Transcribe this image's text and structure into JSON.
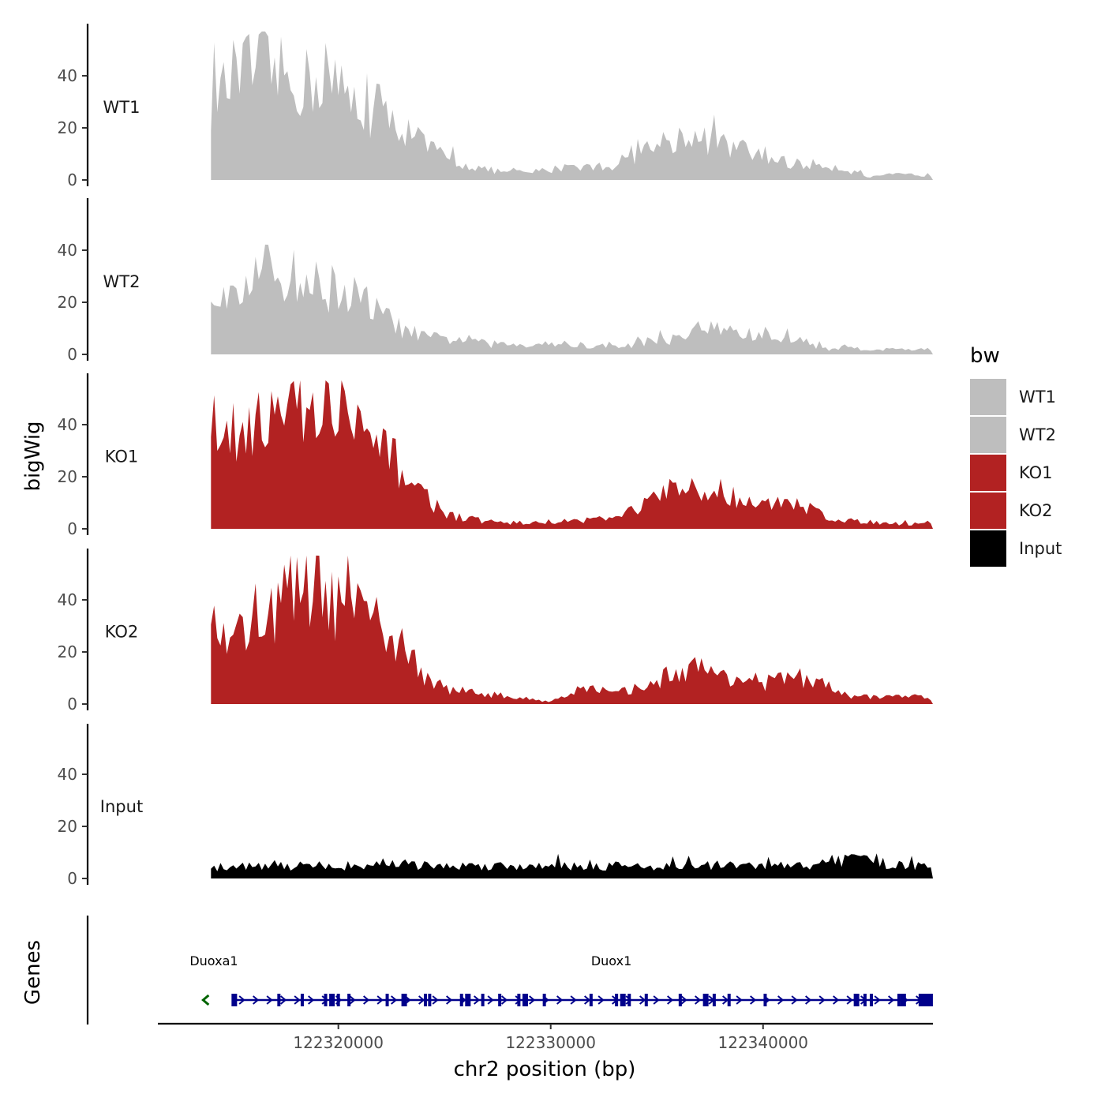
{
  "chart_data": {
    "type": "area",
    "ylabel": "bigWig",
    "xlabel": "chr2 position (bp)",
    "genes_label": "Genes",
    "xlim": [
      122311500,
      122348000
    ],
    "data_range": [
      122314000,
      122348000
    ],
    "ylim": [
      0,
      60
    ],
    "yticks": [
      0,
      20,
      40
    ],
    "xticks": [
      {
        "value": 122320000,
        "label": "122320000"
      },
      {
        "value": 122330000,
        "label": "122330000"
      },
      {
        "value": 122340000,
        "label": "122340000"
      }
    ],
    "legend": {
      "title": "bw",
      "entries": [
        {
          "label": "WT1",
          "color": "#bebebe"
        },
        {
          "label": "WT2",
          "color": "#bebebe"
        },
        {
          "label": "KO1",
          "color": "#b22222"
        },
        {
          "label": "KO2",
          "color": "#b22222"
        },
        {
          "label": "Input",
          "color": "#000000"
        }
      ]
    },
    "series": [
      {
        "name": "WT1",
        "color": "#bebebe",
        "profile": [
          [
            122314000,
            28
          ],
          [
            122315000,
            40
          ],
          [
            122316000,
            44
          ],
          [
            122317000,
            42
          ],
          [
            122318000,
            38
          ],
          [
            122319000,
            39
          ],
          [
            122320000,
            36
          ],
          [
            122321000,
            28
          ],
          [
            122322000,
            24
          ],
          [
            122323000,
            22
          ],
          [
            122324000,
            14
          ],
          [
            122325000,
            9
          ],
          [
            122326000,
            6
          ],
          [
            122327000,
            4
          ],
          [
            122328000,
            3
          ],
          [
            122329000,
            3
          ],
          [
            122330000,
            4
          ],
          [
            122331000,
            6
          ],
          [
            122332000,
            5
          ],
          [
            122333000,
            6
          ],
          [
            122334000,
            10
          ],
          [
            122335000,
            14
          ],
          [
            122336000,
            17
          ],
          [
            122337000,
            16
          ],
          [
            122338000,
            14
          ],
          [
            122339000,
            12
          ],
          [
            122340000,
            9
          ],
          [
            122341000,
            7
          ],
          [
            122342000,
            6
          ],
          [
            122343000,
            6
          ],
          [
            122344000,
            4
          ],
          [
            122345000,
            1
          ],
          [
            122346000,
            2
          ],
          [
            122347000,
            2
          ],
          [
            122348000,
            2
          ]
        ]
      },
      {
        "name": "WT2",
        "color": "#bebebe",
        "profile": [
          [
            122314000,
            26
          ],
          [
            122315000,
            30
          ],
          [
            122316000,
            30
          ],
          [
            122317000,
            33
          ],
          [
            122318000,
            30
          ],
          [
            122319000,
            27
          ],
          [
            122320000,
            26
          ],
          [
            122321000,
            22
          ],
          [
            122322000,
            16
          ],
          [
            122323000,
            10
          ],
          [
            122324000,
            7
          ],
          [
            122325000,
            6
          ],
          [
            122326000,
            6
          ],
          [
            122327000,
            4
          ],
          [
            122328000,
            4
          ],
          [
            122329000,
            4
          ],
          [
            122330000,
            4
          ],
          [
            122331000,
            4
          ],
          [
            122332000,
            3
          ],
          [
            122333000,
            3
          ],
          [
            122334000,
            4
          ],
          [
            122335000,
            6
          ],
          [
            122336000,
            6
          ],
          [
            122337000,
            10
          ],
          [
            122338000,
            10
          ],
          [
            122339000,
            8
          ],
          [
            122340000,
            7
          ],
          [
            122341000,
            6
          ],
          [
            122342000,
            5
          ],
          [
            122343000,
            2
          ],
          [
            122344000,
            3
          ],
          [
            122345000,
            2
          ],
          [
            122346000,
            2
          ],
          [
            122347000,
            2
          ],
          [
            122348000,
            2
          ]
        ]
      },
      {
        "name": "KO1",
        "color": "#b22222",
        "profile": [
          [
            122314000,
            38
          ],
          [
            122315000,
            40
          ],
          [
            122316000,
            45
          ],
          [
            122317000,
            42
          ],
          [
            122318000,
            44
          ],
          [
            122319000,
            46
          ],
          [
            122320000,
            42
          ],
          [
            122321000,
            36
          ],
          [
            122322000,
            30
          ],
          [
            122323000,
            24
          ],
          [
            122324000,
            14
          ],
          [
            122325000,
            6
          ],
          [
            122326000,
            4
          ],
          [
            122327000,
            3
          ],
          [
            122328000,
            2
          ],
          [
            122329000,
            2
          ],
          [
            122330000,
            3
          ],
          [
            122331000,
            3
          ],
          [
            122332000,
            4
          ],
          [
            122333000,
            4
          ],
          [
            122334000,
            8
          ],
          [
            122335000,
            12
          ],
          [
            122336000,
            14
          ],
          [
            122337000,
            13
          ],
          [
            122338000,
            15
          ],
          [
            122339000,
            12
          ],
          [
            122340000,
            9
          ],
          [
            122341000,
            9
          ],
          [
            122342000,
            9
          ],
          [
            122343000,
            5
          ],
          [
            122344000,
            3
          ],
          [
            122345000,
            3
          ],
          [
            122346000,
            2
          ],
          [
            122347000,
            2
          ],
          [
            122348000,
            3
          ]
        ]
      },
      {
        "name": "KO2",
        "color": "#b22222",
        "profile": [
          [
            122314000,
            30
          ],
          [
            122315000,
            27
          ],
          [
            122316000,
            30
          ],
          [
            122317000,
            38
          ],
          [
            122318000,
            45
          ],
          [
            122319000,
            42
          ],
          [
            122320000,
            38
          ],
          [
            122321000,
            34
          ],
          [
            122322000,
            30
          ],
          [
            122323000,
            24
          ],
          [
            122324000,
            12
          ],
          [
            122325000,
            6
          ],
          [
            122326000,
            5
          ],
          [
            122327000,
            4
          ],
          [
            122328000,
            3
          ],
          [
            122329000,
            2
          ],
          [
            122330000,
            1
          ],
          [
            122331000,
            5
          ],
          [
            122332000,
            6
          ],
          [
            122333000,
            4
          ],
          [
            122334000,
            6
          ],
          [
            122335000,
            9
          ],
          [
            122336000,
            13
          ],
          [
            122337000,
            14
          ],
          [
            122338000,
            12
          ],
          [
            122339000,
            10
          ],
          [
            122340000,
            8
          ],
          [
            122341000,
            10
          ],
          [
            122342000,
            9
          ],
          [
            122343000,
            7
          ],
          [
            122344000,
            3
          ],
          [
            122345000,
            3
          ],
          [
            122346000,
            3
          ],
          [
            122347000,
            3
          ],
          [
            122348000,
            2
          ]
        ]
      },
      {
        "name": "Input",
        "color": "#000000",
        "profile": [
          [
            122314000,
            4
          ],
          [
            122315000,
            5
          ],
          [
            122316000,
            5
          ],
          [
            122317000,
            5
          ],
          [
            122318000,
            5
          ],
          [
            122319000,
            5
          ],
          [
            122320000,
            5
          ],
          [
            122321000,
            5
          ],
          [
            122322000,
            6
          ],
          [
            122323000,
            6
          ],
          [
            122324000,
            5
          ],
          [
            122325000,
            5
          ],
          [
            122326000,
            5
          ],
          [
            122327000,
            5
          ],
          [
            122328000,
            5
          ],
          [
            122329000,
            5
          ],
          [
            122330000,
            6
          ],
          [
            122331000,
            5
          ],
          [
            122332000,
            5
          ],
          [
            122333000,
            5
          ],
          [
            122334000,
            5
          ],
          [
            122335000,
            5
          ],
          [
            122336000,
            5
          ],
          [
            122337000,
            5
          ],
          [
            122338000,
            5
          ],
          [
            122339000,
            5
          ],
          [
            122340000,
            5
          ],
          [
            122341000,
            5
          ],
          [
            122342000,
            5
          ],
          [
            122343000,
            7
          ],
          [
            122344000,
            7
          ],
          [
            122345000,
            9
          ],
          [
            122346000,
            5
          ],
          [
            122347000,
            5
          ],
          [
            122348000,
            5
          ]
        ]
      }
    ],
    "genes": [
      {
        "name": "Duoxa1",
        "strand": "-",
        "color": "#006400",
        "start": 122313000,
        "end": 122313300,
        "exons": [],
        "label_at": 122313000
      },
      {
        "name": "Duox1",
        "strand": "+",
        "color": "#00008b",
        "start": 122315000,
        "end": 122347800,
        "exons": [
          122315100,
          122317200,
          122318300,
          122319400,
          122319700,
          122320000,
          122320500,
          122322300,
          122323100,
          122324100,
          122324300,
          122325800,
          122326100,
          122326800,
          122327600,
          122328500,
          122328800,
          122329700,
          122331900,
          122333100,
          122333400,
          122333700,
          122334500,
          122336100,
          122337300,
          122337700,
          122338400,
          122340100,
          122344400,
          122344800,
          122345100,
          122346400,
          122346600,
          122347400,
          122347700
        ],
        "label_at": 122331900
      }
    ]
  }
}
